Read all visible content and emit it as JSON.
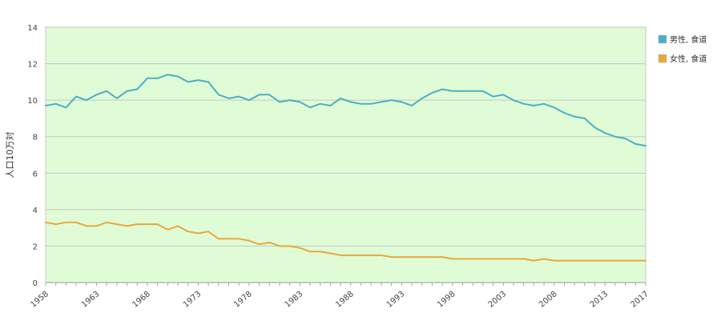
{
  "chart_data": {
    "type": "line",
    "ylabel": "人口10万対",
    "ylim": [
      0,
      14
    ],
    "yticks": [
      0,
      2,
      4,
      6,
      8,
      10,
      12,
      14
    ],
    "xlim": [
      1958,
      2017
    ],
    "xticks": [
      1958,
      1963,
      1968,
      1973,
      1978,
      1983,
      1988,
      1993,
      1998,
      2003,
      2008,
      2013,
      2017
    ],
    "grid": true,
    "legend_position": "right",
    "plot_background": "#e0fcd6",
    "x": [
      1958,
      1959,
      1960,
      1961,
      1962,
      1963,
      1964,
      1965,
      1966,
      1967,
      1968,
      1969,
      1970,
      1971,
      1972,
      1973,
      1974,
      1975,
      1976,
      1977,
      1978,
      1979,
      1980,
      1981,
      1982,
      1983,
      1984,
      1985,
      1986,
      1987,
      1988,
      1989,
      1990,
      1991,
      1992,
      1993,
      1994,
      1995,
      1996,
      1997,
      1998,
      1999,
      2000,
      2001,
      2002,
      2003,
      2004,
      2005,
      2006,
      2007,
      2008,
      2009,
      2010,
      2011,
      2012,
      2013,
      2014,
      2015,
      2016,
      2017
    ],
    "series": [
      {
        "name": "男性, 食道",
        "color": "#4bafc6",
        "values": [
          9.7,
          9.8,
          9.6,
          10.2,
          10.0,
          10.3,
          10.5,
          10.1,
          10.5,
          10.6,
          11.2,
          11.2,
          11.4,
          11.3,
          11.0,
          11.1,
          11.0,
          10.3,
          10.1,
          10.2,
          10.0,
          10.3,
          10.3,
          9.9,
          10.0,
          9.9,
          9.6,
          9.8,
          9.7,
          10.1,
          9.9,
          9.8,
          9.8,
          9.9,
          10.0,
          9.9,
          9.7,
          10.1,
          10.4,
          10.6,
          10.5,
          10.5,
          10.5,
          10.5,
          10.2,
          10.3,
          10.0,
          9.8,
          9.7,
          9.8,
          9.6,
          9.3,
          9.1,
          9.0,
          8.5,
          8.2,
          8.0,
          7.9,
          7.6,
          7.5
        ]
      },
      {
        "name": "女性, 食道",
        "color": "#e8a83c",
        "values": [
          3.3,
          3.2,
          3.3,
          3.3,
          3.1,
          3.1,
          3.3,
          3.2,
          3.1,
          3.2,
          3.2,
          3.2,
          2.9,
          3.1,
          2.8,
          2.7,
          2.8,
          2.4,
          2.4,
          2.4,
          2.3,
          2.1,
          2.2,
          2.0,
          2.0,
          1.9,
          1.7,
          1.7,
          1.6,
          1.5,
          1.5,
          1.5,
          1.5,
          1.5,
          1.4,
          1.4,
          1.4,
          1.4,
          1.4,
          1.4,
          1.3,
          1.3,
          1.3,
          1.3,
          1.3,
          1.3,
          1.3,
          1.3,
          1.2,
          1.3,
          1.2,
          1.2,
          1.2,
          1.2,
          1.2,
          1.2,
          1.2,
          1.2,
          1.2,
          1.2
        ]
      }
    ]
  }
}
